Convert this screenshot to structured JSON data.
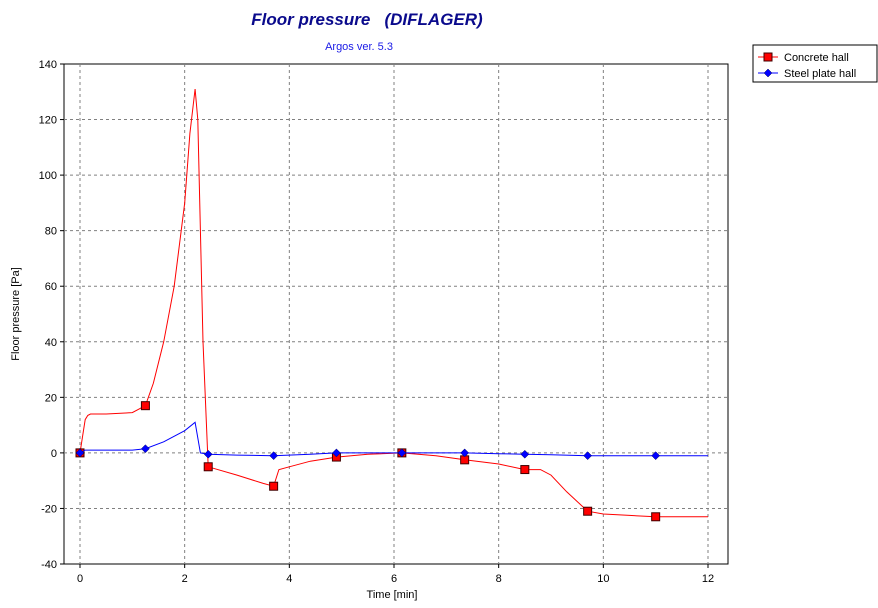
{
  "chart_data": {
    "type": "line",
    "title": "Floor pressure   (DIFLAGER)",
    "subtitle": "Argos ver. 5.3",
    "xlabel": "Time [min]",
    "ylabel": "Floor pressure [Pa]",
    "xlim": [
      0,
      12
    ],
    "ylim": [
      -40,
      140
    ],
    "xticks": [
      0,
      2,
      4,
      6,
      8,
      10,
      12
    ],
    "yticks": [
      -40,
      -20,
      0,
      20,
      40,
      60,
      80,
      100,
      120,
      140
    ],
    "grid": true,
    "legend_position": "top-right, outside plot",
    "series": [
      {
        "name": "Concrete hall",
        "color": "#ff0000",
        "marker": "square",
        "x": [
          0,
          0.05,
          0.1,
          0.15,
          0.2,
          0.5,
          1.0,
          1.25,
          1.4,
          1.6,
          1.8,
          2.0,
          2.1,
          2.2,
          2.25,
          2.35,
          2.45,
          3.0,
          3.5,
          3.7,
          3.8,
          4.0,
          4.4,
          4.9,
          5.5,
          6.15,
          6.8,
          7.35,
          8.0,
          8.5,
          8.8,
          9.0,
          9.3,
          9.7,
          10.0,
          10.5,
          11.0,
          11.5,
          12.0
        ],
        "y": [
          0,
          6,
          12,
          13.5,
          14,
          14,
          14.5,
          17,
          25,
          40,
          60,
          90,
          115,
          131,
          120,
          40,
          -5,
          -8,
          -11,
          -12,
          -6,
          -5,
          -3,
          -1.5,
          -0.5,
          0,
          -1,
          -2.5,
          -4,
          -6,
          -6,
          -8,
          -14,
          -21,
          -22,
          -22.5,
          -23,
          -23,
          -23
        ],
        "marker_x": [
          0,
          1.25,
          2.45,
          3.7,
          4.9,
          6.15,
          7.35,
          8.5,
          9.7,
          11.0
        ],
        "marker_y": [
          0,
          17,
          -5,
          -12,
          -1.5,
          0,
          -2.5,
          -6,
          -21,
          -23
        ]
      },
      {
        "name": "Steel plate hall",
        "color": "#0000ff",
        "marker": "diamond",
        "x": [
          0,
          0.1,
          0.5,
          1.0,
          1.25,
          1.6,
          2.0,
          2.2,
          2.3,
          2.45,
          3.0,
          3.7,
          4.4,
          4.9,
          5.5,
          6.15,
          6.8,
          7.35,
          8.0,
          8.5,
          9.0,
          9.7,
          10.5,
          11.0,
          12.0
        ],
        "y": [
          0,
          1,
          1,
          1,
          1.5,
          4,
          8,
          11,
          0,
          -0.5,
          -0.8,
          -1,
          -0.5,
          0,
          0,
          0,
          0,
          0,
          -0.3,
          -0.5,
          -0.7,
          -1,
          -1,
          -1,
          -1
        ],
        "marker_x": [
          0,
          1.25,
          2.45,
          3.7,
          4.9,
          6.15,
          7.35,
          8.5,
          9.7,
          11.0
        ],
        "marker_y": [
          0,
          1.5,
          -0.5,
          -1,
          0,
          0,
          0,
          -0.5,
          -1,
          -1
        ]
      }
    ]
  }
}
